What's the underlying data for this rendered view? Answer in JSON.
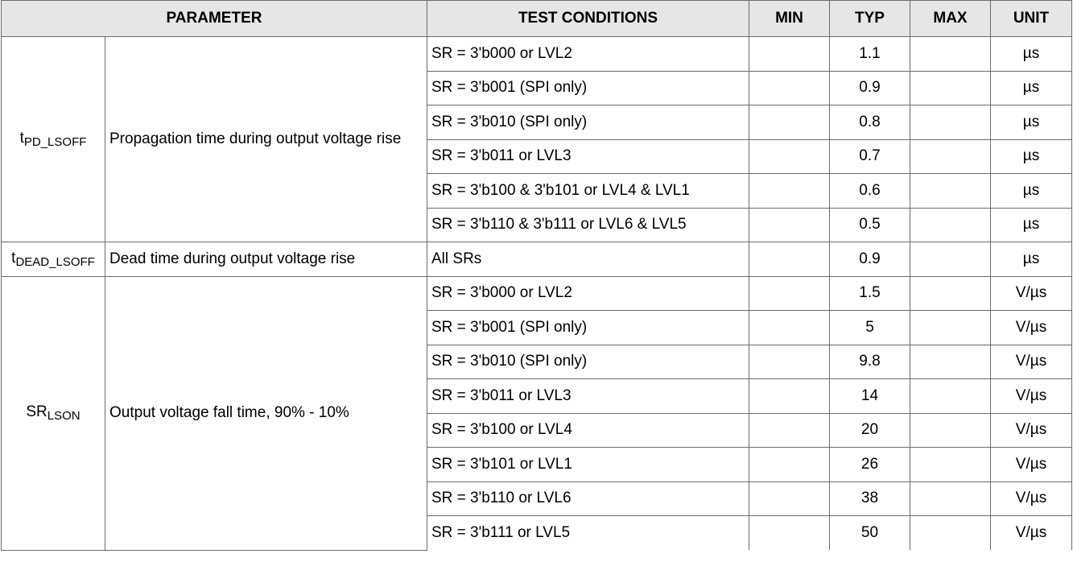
{
  "headers": {
    "parameter": "PARAMETER",
    "test_conditions": "TEST CONDITIONS",
    "min": "MIN",
    "typ": "TYP",
    "max": "MAX",
    "unit": "UNIT"
  },
  "groups": [
    {
      "symbol_main": "t",
      "symbol_sub": "PD_LSOFF",
      "description": "Propagation time during output voltage rise",
      "rows": [
        {
          "condition": "SR = 3'b000 or LVL2",
          "min": "",
          "typ": "1.1",
          "max": "",
          "unit": "µs"
        },
        {
          "condition": "SR = 3'b001 (SPI only)",
          "min": "",
          "typ": "0.9",
          "max": "",
          "unit": "µs"
        },
        {
          "condition": "SR = 3'b010 (SPI only)",
          "min": "",
          "typ": "0.8",
          "max": "",
          "unit": "µs"
        },
        {
          "condition": "SR = 3'b011 or LVL3",
          "min": "",
          "typ": "0.7",
          "max": "",
          "unit": "µs"
        },
        {
          "condition": "SR = 3'b100 & 3'b101 or LVL4 & LVL1",
          "min": "",
          "typ": "0.6",
          "max": "",
          "unit": "µs"
        },
        {
          "condition": "SR = 3'b110 & 3'b111 or LVL6 & LVL5",
          "min": "",
          "typ": "0.5",
          "max": "",
          "unit": "µs"
        }
      ]
    },
    {
      "symbol_main": "t",
      "symbol_sub": "DEAD_LSOFF",
      "description": "Dead time during output voltage rise",
      "rows": [
        {
          "condition": "All SRs",
          "min": "",
          "typ": "0.9",
          "max": "",
          "unit": "µs"
        }
      ]
    },
    {
      "symbol_main": "SR",
      "symbol_sub": "LSON",
      "description": "Output voltage fall time, 90% - 10%",
      "rows": [
        {
          "condition": "SR = 3'b000 or LVL2",
          "min": "",
          "typ": "1.5",
          "max": "",
          "unit": "V/µs"
        },
        {
          "condition": "SR = 3'b001 (SPI only)",
          "min": "",
          "typ": "5",
          "max": "",
          "unit": "V/µs"
        },
        {
          "condition": "SR = 3'b010 (SPI only)",
          "min": "",
          "typ": "9.8",
          "max": "",
          "unit": "V/µs"
        },
        {
          "condition": "SR = 3'b011 or LVL3",
          "min": "",
          "typ": "14",
          "max": "",
          "unit": "V/µs"
        },
        {
          "condition": "SR = 3'b100 or LVL4",
          "min": "",
          "typ": "20",
          "max": "",
          "unit": "V/µs"
        },
        {
          "condition": "SR = 3'b101 or LVL1",
          "min": "",
          "typ": "26",
          "max": "",
          "unit": "V/µs"
        },
        {
          "condition": "SR = 3'b110 or LVL6",
          "min": "",
          "typ": "38",
          "max": "",
          "unit": "V/µs"
        },
        {
          "condition": "SR = 3'b111 or LVL5",
          "min": "",
          "typ": "50",
          "max": "",
          "unit": "V/µs"
        }
      ]
    }
  ]
}
